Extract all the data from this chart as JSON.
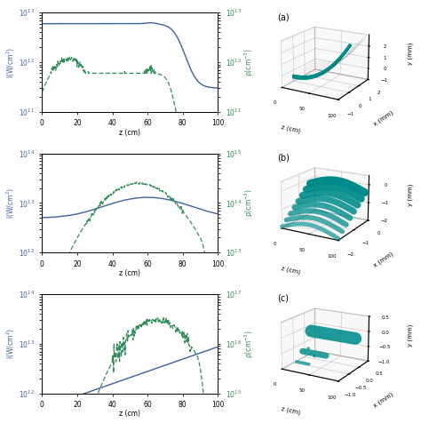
{
  "panels": [
    {
      "label": "(a)",
      "left_ylabel": "I(W/cm$^{2}$)",
      "right_ylabel": "ρ(cm$^{-3}$)",
      "xlabel": "z (cm)",
      "left_ylim": [
        100000000000.0,
        10000000000000.0
      ],
      "right_ylim": [
        100000000000.0,
        10000000000000.0
      ],
      "left_yticks": [
        100000000000.0,
        1000000000000.0,
        10000000000000.0
      ],
      "right_yticks": [
        100000000000.0,
        1000000000000.0,
        10000000000000.0
      ],
      "xlim": [
        0,
        100
      ],
      "xticks": [
        0,
        20,
        40,
        60,
        80,
        100
      ],
      "3d_z_label": "z (cm)",
      "3d_x_label": "x (mm)",
      "3d_y_label": "y (mm)",
      "3d_zlim": [
        0,
        100
      ],
      "3d_xlim": [
        -1,
        2
      ],
      "3d_ylim": [
        -1,
        3
      ],
      "3d_zticks": [
        0,
        50,
        100
      ],
      "3d_xticks": [
        -1,
        0,
        1,
        2
      ],
      "3d_yticks": [
        -1,
        0,
        1,
        2
      ]
    },
    {
      "label": "(b)",
      "left_ylabel": "I(W/cm$^{2}$)",
      "right_ylabel": "ρ(cm$^{-3}$)",
      "xlabel": "z (cm)",
      "left_ylim": [
        1000000000000.0,
        100000000000000.0
      ],
      "right_ylim": [
        10000000000000.0,
        1000000000000000.0
      ],
      "left_yticks": [
        1000000000000.0,
        10000000000000.0,
        100000000000000.0
      ],
      "right_yticks": [
        10000000000000.0,
        100000000000000.0,
        1000000000000000.0
      ],
      "xlim": [
        0,
        100
      ],
      "xticks": [
        0,
        20,
        40,
        60,
        80,
        100
      ],
      "3d_z_label": "z (cm)",
      "3d_x_label": "x (mm)",
      "3d_y_label": "y (mm)",
      "3d_zlim": [
        0,
        100
      ],
      "3d_xlim": [
        -2,
        0
      ],
      "3d_ylim": [
        -2,
        0.5
      ],
      "3d_zticks": [
        0,
        50,
        100
      ],
      "3d_xticks": [
        -2,
        -1,
        0
      ],
      "3d_yticks": [
        -2,
        -1,
        0
      ]
    },
    {
      "label": "(c)",
      "left_ylabel": "I(W/cm$^{2}$)",
      "right_ylabel": "ρ(cm$^{-3}$)",
      "xlabel": "z (cm)",
      "left_ylim": [
        1000000000000.0,
        100000000000000.0
      ],
      "right_ylim": [
        1000000000000000.0,
        1e+17
      ],
      "left_yticks": [
        1000000000000.0,
        10000000000000.0,
        100000000000000.0
      ],
      "right_yticks": [
        1000000000000000.0,
        1e+16,
        1e+17
      ],
      "xlim": [
        0,
        100
      ],
      "xticks": [
        0,
        20,
        40,
        60,
        80,
        100
      ],
      "3d_z_label": "z (cm)",
      "3d_x_label": "x (mm)",
      "3d_y_label": "y (mm)",
      "3d_zlim": [
        0,
        100
      ],
      "3d_xlim": [
        -1,
        0.5
      ],
      "3d_ylim": [
        -1,
        0.5
      ],
      "3d_zticks": [
        0,
        50,
        100
      ],
      "3d_xticks": [
        -1,
        -0.5,
        0,
        0.5
      ],
      "3d_yticks": [
        -1,
        -0.5,
        0,
        0.5
      ]
    }
  ],
  "teal_color": "#008B8B",
  "line_blue": "#4060a0",
  "line_green": "#2e8b57",
  "pane_color": "#e8e8e8"
}
